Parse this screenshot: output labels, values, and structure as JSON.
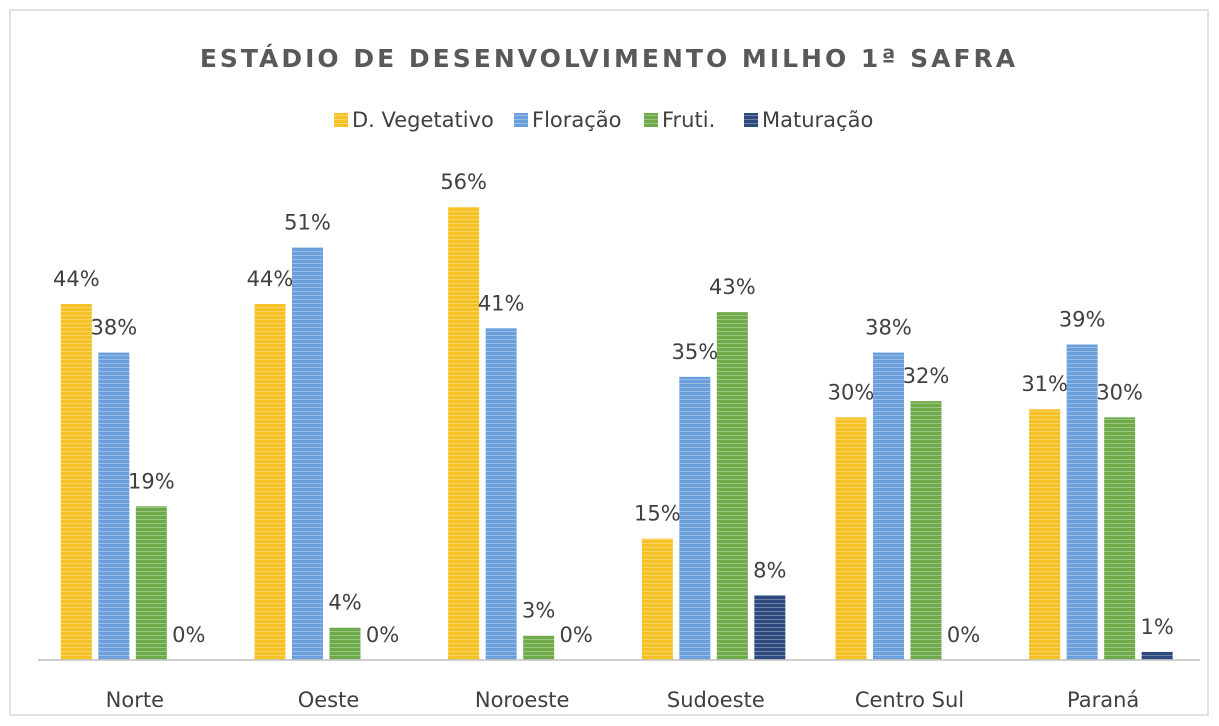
{
  "chart_data": {
    "type": "bar",
    "title": "ESTÁDIO DE DESENVOLVIMENTO MILHO 1ª SAFRA",
    "categories": [
      "Norte",
      "Oeste",
      "Noroeste",
      "Sudoeste",
      "Centro Sul",
      "Paraná"
    ],
    "series": [
      {
        "name": "D. Vegetativo",
        "color": "#f5c124",
        "values": [
          44,
          44,
          56,
          15,
          30,
          31
        ],
        "value_labels": [
          "44%",
          "44%",
          "56%",
          "15%",
          "30%",
          "31%"
        ]
      },
      {
        "name": "Floração",
        "color": "#6a9fdb",
        "values": [
          38,
          51,
          41,
          35,
          38,
          39
        ],
        "value_labels": [
          "38%",
          "51%",
          "41%",
          "35%",
          "38%",
          "39%"
        ]
      },
      {
        "name": "Fruti.",
        "color": "#6faa4a",
        "values": [
          19,
          4,
          3,
          43,
          32,
          30
        ],
        "value_labels": [
          "19%",
          "4%",
          "3%",
          "43%",
          "32%",
          "30%"
        ]
      },
      {
        "name": "Maturação",
        "color": "#2c4a7e",
        "values": [
          0,
          0,
          0,
          8,
          0,
          1
        ],
        "value_labels": [
          "0%",
          "0%",
          "0%",
          "8%",
          "0%",
          "1%"
        ]
      }
    ]
  }
}
